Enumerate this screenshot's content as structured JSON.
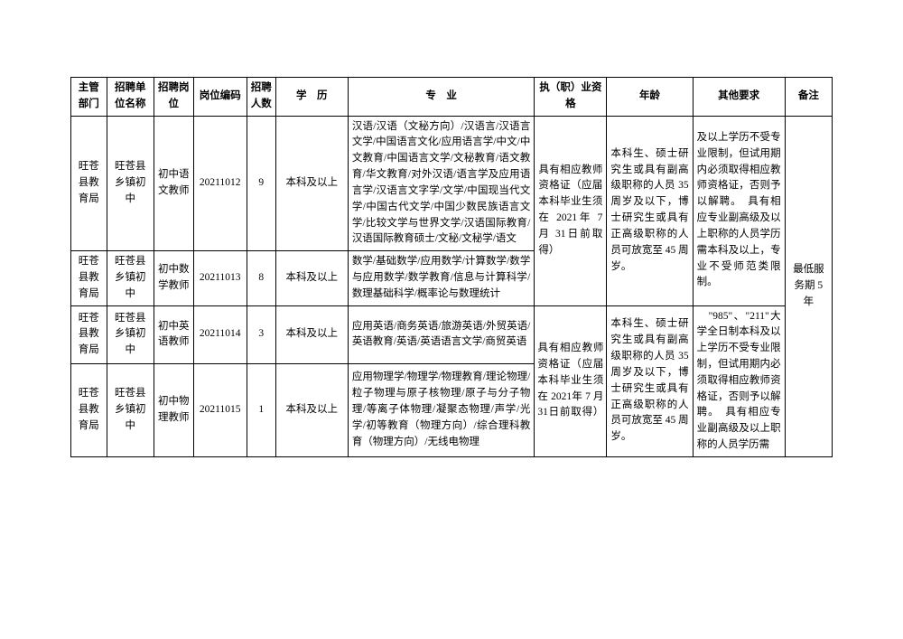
{
  "headers": {
    "c1": "主管部门",
    "c2": "招聘单位名称",
    "c3": "招聘岗位",
    "c4": "岗位编码",
    "c5": "招聘人数",
    "c6": "学　历",
    "c7": "专　业",
    "c8": "执（职）业资格",
    "c9": "年龄",
    "c10": "其他要求",
    "c11": "备注"
  },
  "rows": [
    {
      "dept": "旺苍县教育局",
      "unit": "旺苍县乡镇初中",
      "post": "初中语文教师",
      "code": "20211012",
      "num": "9",
      "edu": "本科及以上",
      "major": "汉语/汉语（文秘方向）/汉语言/汉语言文学/中国语言文化/应用语言学/中文/中文教育/中国语言文学/文秘教育/语文教育/华文教育/对外汉语/语言学及应用语言学/汉语言文字学/文学/中国现当代文学/中国古代文学/中国少数民族语言文学/比较文学与世界文学/汉语国际教育/汉语国际教育硕士/文秘/文秘学/语文"
    },
    {
      "dept": "旺苍县教育局",
      "unit": "旺苍县乡镇初中",
      "post": "初中数学教师",
      "code": "20211013",
      "num": "8",
      "edu": "本科及以上",
      "major": "数学/基础数学/应用数学/计算数学/数学与应用数学/数学教育/信息与计算科学/数理基础科学/概率论与数理统计"
    },
    {
      "dept": "旺苍县教育局",
      "unit": "旺苍县乡镇初中",
      "post": "初中英语教师",
      "code": "20211014",
      "num": "3",
      "edu": "本科及以上",
      "major": "应用英语/商务英语/旅游英语/外贸英语/英语教育/英语/英语语言文学/商贸英语"
    },
    {
      "dept": "旺苍县教育局",
      "unit": "旺苍县乡镇初中",
      "post": "初中物理教师",
      "code": "20211015",
      "num": "1",
      "edu": "本科及以上",
      "major": "应用物理学/物理学/物理教育/理论物理/粒子物理与原子核物理/原子与分子物理/等离子体物理/凝聚态物理/声学/光学/初等教育（物理方向）/综合理科教育（物理方向）/无线电物理"
    }
  ],
  "merged": {
    "qual_top": "具有相应教师资格证（应届本科毕业生须在 2021年 7 月 31日前取得）",
    "age_top": "本科生、硕士研究生或具有副高级职称的人员 35 周岁及以下，博士研究生或具有正高级职称的人员可放宽至 45 周岁。",
    "other_top": "及以上学历不受专业限制，但试用期内必须取得相应教师资格证，否则予以解聘。　具有相应专业副高级及以上职称的人员学历需本科及以上，专业不受师范类限制。",
    "qual_bot": "具有相应教师资格证（应届本科毕业生须在 2021年 7 月 31日前取得）",
    "age_bot": "本科生、硕士研究生或具有副高级职称的人员 35 周岁及以下，博士研究生或具有正高级职称的人员可放宽至 45 周岁。",
    "other_bot": "　\"985\"、\"211\"大学全日制本科及以上学历不受专业限制，但试用期内必须取得相应教师资格证，否则予以解聘。　具有相应专业副高级及以上职称的人员学历需",
    "remark": "最低服务期 5 年"
  }
}
